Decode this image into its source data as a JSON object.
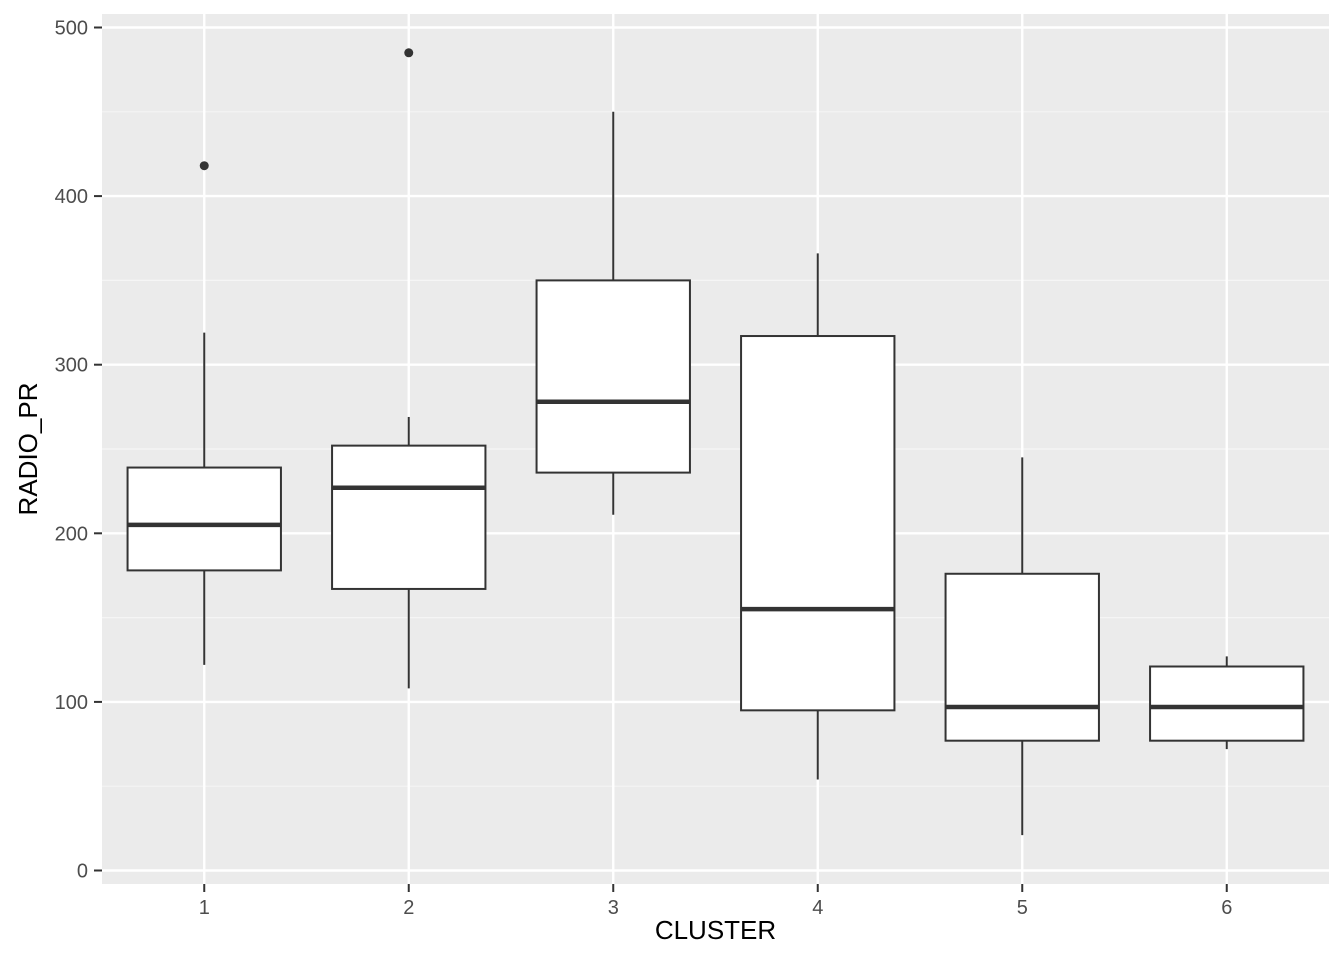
{
  "chart_data": {
    "type": "boxplot",
    "xlabel": "CLUSTER",
    "ylabel": "RADIO_PR",
    "categories": [
      "1",
      "2",
      "3",
      "4",
      "5",
      "6"
    ],
    "y_ticks": [
      0,
      100,
      200,
      300,
      400,
      500
    ],
    "ylim": [
      -8,
      508
    ],
    "grid": true,
    "legend": "none",
    "colors": {
      "panel_background": "#ebebeb",
      "grid_major": "#ffffff",
      "grid_minor": "#f5f5f5",
      "box_fill": "#ffffff",
      "box_line": "#333333"
    },
    "boxes": [
      {
        "category": "1",
        "whisker_low": 122,
        "q1": 178,
        "median": 205,
        "q3": 239,
        "whisker_high": 319,
        "outliers": [
          418
        ]
      },
      {
        "category": "2",
        "whisker_low": 108,
        "q1": 167,
        "median": 227,
        "q3": 252,
        "whisker_high": 269,
        "outliers": [
          485
        ]
      },
      {
        "category": "3",
        "whisker_low": 211,
        "q1": 236,
        "median": 278,
        "q3": 350,
        "whisker_high": 450,
        "outliers": []
      },
      {
        "category": "4",
        "whisker_low": 54,
        "q1": 95,
        "median": 155,
        "q3": 317,
        "whisker_high": 366,
        "outliers": []
      },
      {
        "category": "5",
        "whisker_low": 21,
        "q1": 77,
        "median": 97,
        "q3": 176,
        "whisker_high": 245,
        "outliers": []
      },
      {
        "category": "6",
        "whisker_low": 72,
        "q1": 77,
        "median": 97,
        "q3": 121,
        "whisker_high": 127,
        "outliers": []
      }
    ]
  }
}
